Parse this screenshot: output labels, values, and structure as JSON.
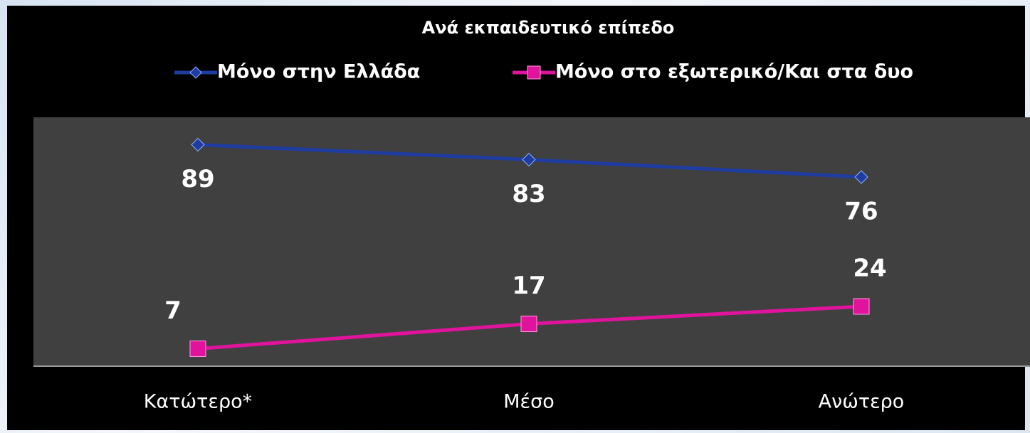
{
  "chart_data": {
    "type": "line",
    "title": "Ανά εκπαιδευτικό επίπεδο",
    "categories": [
      "Κατώτερο*",
      "Μέσο",
      "Ανώτερο"
    ],
    "series": [
      {
        "name": "Μόνο στην Ελλάδα",
        "color": "#1f3ca0",
        "marker": "diamond",
        "values": [
          89,
          83,
          76
        ]
      },
      {
        "name": "Μόνο στο εξωτερικό/Και στα δυο",
        "color": "#e0139c",
        "marker": "square",
        "values": [
          7,
          17,
          24
        ]
      }
    ],
    "ylim": [
      0,
      100
    ],
    "legend": "top"
  }
}
